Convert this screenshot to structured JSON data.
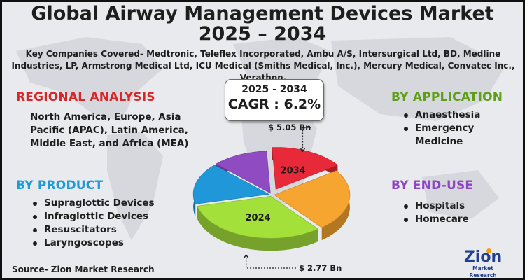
{
  "header": {
    "title_line1": "Global Airway Management Devices Market",
    "title_line2": "2025 – 2034",
    "companies": "Key Companies Covered- Medtronic, Teleflex Incorporated, Ambu A/S, Intersurgical Ltd, BD, Medline Industries, LP, Armstrong Medical Ltd, ICU Medical (Smiths Medical, Inc.), Mercury Medical, Convatec Inc., Verathon."
  },
  "regional": {
    "heading": "REGIONAL ANALYSIS",
    "text": "North America, Europe, Asia Pacific (APAC), Latin America, Middle East, and Africa (MEA)"
  },
  "product": {
    "heading": "BY PRODUCT",
    "items": [
      "Supraglottic Devices",
      "Infraglottic Devices",
      "Resuscitators",
      "Laryngoscopes"
    ]
  },
  "application": {
    "heading": "BY APPLICATION",
    "items": [
      "Anaesthesia",
      "Emergency Medicine"
    ]
  },
  "end_use": {
    "heading": "BY END-USE",
    "items": [
      "Hospitals",
      "Homecare"
    ]
  },
  "cagr_box": {
    "years": "2025 - 2034",
    "cagr": "CAGR : 6.2%"
  },
  "source": "Source- Zion Market Research",
  "logo": {
    "word": "Zion",
    "sub": "Market Research"
  },
  "chart_data": {
    "type": "pie",
    "style": "3d-exploded",
    "slices": [
      {
        "label": "2034",
        "value": 0.16,
        "color": "#e8293a"
      },
      {
        "label": "",
        "value": 0.24,
        "color": "#f7a531"
      },
      {
        "label": "2024",
        "value": 0.32,
        "color": "#a4e03a"
      },
      {
        "label": "",
        "value": 0.16,
        "color": "#1f97d8"
      },
      {
        "label": "",
        "value": 0.12,
        "color": "#8e4bc2"
      }
    ],
    "annotations": [
      {
        "text": "$ 5.05 Bn",
        "target": "2034"
      },
      {
        "text": "$ 2.77 Bn",
        "target": "2024"
      }
    ]
  }
}
